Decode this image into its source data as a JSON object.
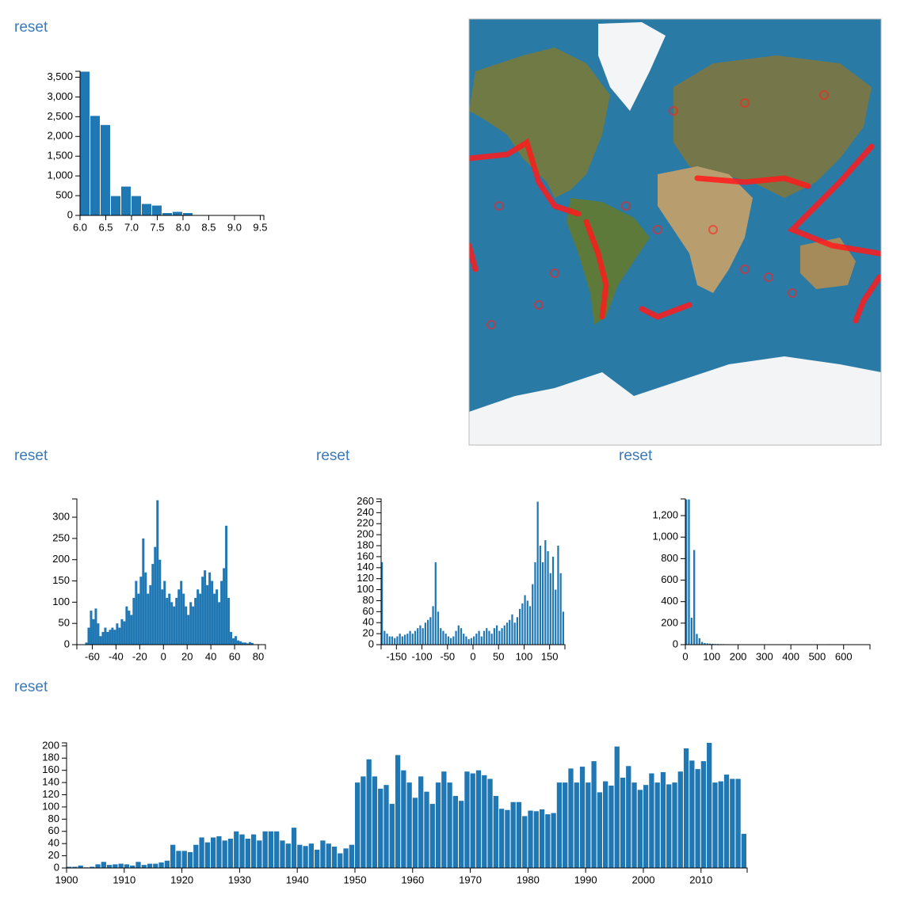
{
  "chart_data": [
    {
      "type": "histogram",
      "link": "reset",
      "bins": [
        6.0,
        6.2,
        6.4,
        6.6,
        6.8,
        7.0,
        7.2,
        7.4,
        7.6,
        7.8,
        8.0,
        8.2,
        8.4,
        8.6,
        8.8,
        9.0,
        9.2,
        9.4
      ],
      "values": [
        3640,
        2520,
        2290,
        490,
        730,
        490,
        290,
        250,
        60,
        90,
        60,
        10,
        5,
        3,
        2,
        2,
        1
      ],
      "color": "#1f77b4",
      "xlim": [
        6.0,
        9.57
      ],
      "ylim": [
        0,
        3650
      ],
      "xticks": [
        {
          "value": 6,
          "label": "6.0"
        },
        6.5,
        {
          "value": 7,
          "label": "7.0"
        },
        7.5,
        {
          "value": 8,
          "label": "8.0"
        },
        8.5,
        {
          "value": 9,
          "label": "9.0"
        },
        9.5
      ],
      "yticks": [
        0,
        500,
        {
          "value": 1000,
          "label": "1,000"
        },
        {
          "value": 1500,
          "label": "1,500"
        },
        {
          "value": 2000,
          "label": "2,000"
        },
        {
          "value": 2500,
          "label": "2,500"
        },
        {
          "value": 3000,
          "label": "3,000"
        },
        {
          "value": 3500,
          "label": "3,500"
        }
      ]
    },
    {
      "type": "histogram",
      "link": "reset",
      "bins": [
        -66,
        -64,
        -62,
        -60,
        -58,
        -56,
        -54,
        -52,
        -50,
        -48,
        -46,
        -44,
        -42,
        -40,
        -38,
        -36,
        -34,
        -32,
        -30,
        -28,
        -26,
        -24,
        -22,
        -20,
        -18,
        -16,
        -14,
        -12,
        -10,
        -8,
        -6,
        -4,
        -2,
        0,
        2,
        4,
        6,
        8,
        10,
        12,
        14,
        16,
        18,
        20,
        22,
        24,
        26,
        28,
        30,
        32,
        34,
        36,
        38,
        40,
        42,
        44,
        46,
        48,
        50,
        52,
        54,
        56,
        58,
        60,
        62,
        64,
        66,
        68,
        70,
        72,
        74,
        76,
        78,
        80
      ],
      "values": [
        5,
        40,
        80,
        60,
        85,
        50,
        20,
        30,
        40,
        30,
        35,
        40,
        35,
        50,
        40,
        60,
        55,
        90,
        80,
        70,
        110,
        150,
        120,
        160,
        250,
        170,
        120,
        140,
        190,
        230,
        340,
        200,
        130,
        150,
        110,
        120,
        100,
        90,
        110,
        130,
        150,
        120,
        90,
        70,
        100,
        90,
        110,
        130,
        120,
        160,
        175,
        140,
        170,
        150,
        120,
        130,
        100,
        150,
        180,
        280,
        110,
        30,
        15,
        20,
        10,
        8,
        5,
        5,
        3,
        6,
        4,
        1,
        1
      ],
      "color": "#1f77b4",
      "xlim": [
        -73,
        86
      ],
      "ylim": [
        0,
        343
      ],
      "xticks": [
        -60,
        -40,
        -20,
        0,
        20,
        40,
        60,
        80
      ],
      "yticks": [
        0,
        50,
        100,
        150,
        200,
        250,
        300
      ]
    },
    {
      "type": "histogram",
      "link": "reset",
      "bins": [
        -180,
        -175,
        -170,
        -165,
        -160,
        -155,
        -150,
        -145,
        -140,
        -135,
        -130,
        -125,
        -120,
        -115,
        -110,
        -105,
        -100,
        -95,
        -90,
        -85,
        -80,
        -75,
        -70,
        -65,
        -60,
        -55,
        -50,
        -45,
        -40,
        -35,
        -30,
        -25,
        -20,
        -15,
        -10,
        -5,
        0,
        5,
        10,
        15,
        20,
        25,
        30,
        35,
        40,
        45,
        50,
        55,
        60,
        65,
        70,
        75,
        80,
        85,
        90,
        95,
        100,
        105,
        110,
        115,
        120,
        125,
        130,
        135,
        140,
        145,
        150,
        155,
        160,
        165,
        170,
        175,
        180
      ],
      "values": [
        150,
        25,
        20,
        15,
        15,
        12,
        15,
        20,
        15,
        18,
        20,
        25,
        20,
        25,
        30,
        35,
        30,
        40,
        45,
        50,
        70,
        150,
        60,
        30,
        25,
        20,
        15,
        12,
        15,
        25,
        35,
        30,
        20,
        15,
        10,
        12,
        15,
        20,
        25,
        15,
        25,
        30,
        25,
        20,
        30,
        35,
        25,
        30,
        35,
        40,
        45,
        55,
        40,
        50,
        65,
        75,
        90,
        80,
        70,
        110,
        150,
        260,
        180,
        150,
        190,
        170,
        130,
        160,
        100,
        180,
        130,
        60
      ],
      "color": "#1f77b4",
      "xlim": [
        -180,
        180
      ],
      "ylim": [
        0,
        265
      ],
      "xticks": [
        -150,
        -100,
        -50,
        0,
        50,
        100,
        150
      ],
      "yticks": [
        0,
        20,
        40,
        60,
        80,
        100,
        120,
        140,
        160,
        180,
        200,
        220,
        240,
        260
      ]
    },
    {
      "type": "histogram",
      "link": "reset",
      "bins": [
        0,
        10,
        20,
        30,
        40,
        50,
        60,
        70,
        80,
        90,
        100,
        110,
        120,
        130,
        140,
        150,
        160,
        170,
        180,
        190,
        200,
        210,
        220,
        230,
        240,
        250,
        260,
        270,
        280,
        290,
        300,
        310,
        320,
        330,
        340,
        350,
        360,
        370,
        380,
        390,
        400,
        410,
        420,
        430,
        440,
        450,
        460,
        470,
        480,
        490,
        500,
        510,
        520,
        530,
        540,
        550,
        560,
        570,
        580,
        590,
        600,
        610,
        620,
        630,
        640,
        650,
        660,
        670,
        680,
        690,
        700
      ],
      "values": [
        1350,
        1350,
        250,
        880,
        100,
        60,
        25,
        15,
        12,
        10,
        8,
        6,
        6,
        5,
        5,
        4,
        4,
        3,
        3,
        3,
        3,
        2,
        2,
        2,
        2,
        2,
        2,
        2,
        1,
        1,
        1,
        1,
        1,
        1,
        1,
        1,
        1,
        1,
        1,
        1,
        1,
        1,
        1,
        1,
        1,
        1,
        1,
        1,
        1,
        1,
        2,
        2,
        3,
        3,
        4,
        3,
        2,
        1,
        1,
        1,
        0,
        0,
        0,
        0,
        0,
        0,
        0,
        0,
        0,
        0
      ],
      "color": "#1f77b4",
      "xlim": [
        0,
        700
      ],
      "ylim": [
        0,
        1355
      ],
      "xticks": [
        0,
        100,
        200,
        300,
        400,
        500,
        600
      ],
      "yticks": [
        0,
        200,
        400,
        600,
        800,
        {
          "value": 1000,
          "label": "1,000"
        },
        {
          "value": 1200,
          "label": "1,200"
        }
      ]
    },
    {
      "type": "histogram",
      "link": "reset",
      "bins": [
        1900,
        1901,
        1902,
        1903,
        1904,
        1905,
        1906,
        1907,
        1908,
        1909,
        1910,
        1911,
        1912,
        1913,
        1914,
        1915,
        1916,
        1917,
        1918,
        1919,
        1920,
        1921,
        1922,
        1923,
        1924,
        1925,
        1926,
        1927,
        1928,
        1929,
        1930,
        1931,
        1932,
        1933,
        1934,
        1935,
        1936,
        1937,
        1938,
        1939,
        1940,
        1941,
        1942,
        1943,
        1944,
        1945,
        1946,
        1947,
        1948,
        1949,
        1950,
        1951,
        1952,
        1953,
        1954,
        1955,
        1956,
        1957,
        1958,
        1959,
        1960,
        1961,
        1962,
        1963,
        1964,
        1965,
        1966,
        1967,
        1968,
        1969,
        1970,
        1971,
        1972,
        1973,
        1974,
        1975,
        1976,
        1977,
        1978,
        1979,
        1980,
        1981,
        1982,
        1983,
        1984,
        1985,
        1986,
        1987,
        1988,
        1989,
        1990,
        1991,
        1992,
        1993,
        1994,
        1995,
        1996,
        1997,
        1998,
        1999,
        2000,
        2001,
        2002,
        2003,
        2004,
        2005,
        2006,
        2007,
        2008,
        2009,
        2010,
        2011,
        2012,
        2013,
        2014,
        2015,
        2016,
        2017,
        2018
      ],
      "values": [
        2,
        2,
        4,
        1,
        2,
        6,
        10,
        5,
        6,
        7,
        6,
        4,
        10,
        5,
        7,
        7,
        9,
        12,
        38,
        28,
        28,
        26,
        38,
        50,
        42,
        50,
        52,
        45,
        48,
        60,
        55,
        48,
        55,
        45,
        60,
        60,
        60,
        45,
        40,
        66,
        38,
        36,
        40,
        30,
        45,
        40,
        35,
        24,
        32,
        38,
        140,
        150,
        178,
        150,
        130,
        136,
        105,
        185,
        160,
        140,
        115,
        150,
        125,
        105,
        140,
        158,
        140,
        118,
        110,
        158,
        155,
        160,
        152,
        146,
        118,
        97,
        95,
        108,
        108,
        85,
        94,
        93,
        96,
        88,
        90,
        140,
        140,
        163,
        140,
        166,
        140,
        175,
        124,
        142,
        135,
        199,
        148,
        167,
        140,
        128,
        136,
        155,
        140,
        157,
        137,
        140,
        158,
        196,
        176,
        162,
        175,
        205,
        140,
        142,
        153,
        146,
        146,
        56
      ],
      "color": "#1f77b4",
      "xlim": [
        1900,
        2018
      ],
      "ylim": [
        0,
        205
      ],
      "xticks": [
        1900,
        1910,
        1920,
        1930,
        1940,
        1950,
        1960,
        1970,
        1980,
        1990,
        2000,
        2010
      ],
      "yticks": [
        0,
        20,
        40,
        60,
        80,
        100,
        120,
        140,
        160,
        180,
        200
      ]
    }
  ]
}
